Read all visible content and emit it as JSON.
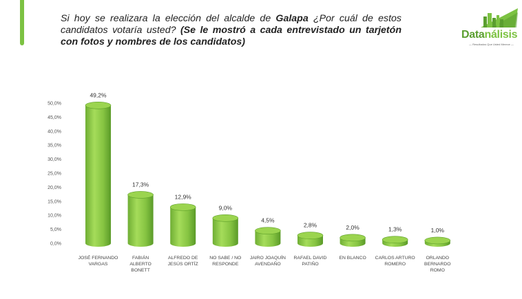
{
  "header": {
    "question_part1": "Si hoy se realizara la elección del alcalde de ",
    "question_city": "Galapa",
    "question_part2": " ¿Por cuál de estos candidatos votaría usted? ",
    "question_note": "(Se le mostró a cada entrevistado un tarjetón con fotos y nombres de los candidatos)"
  },
  "logo": {
    "text_part1": "Data",
    "text_part2": "nálisis",
    "tagline": "— Resultados Que Usted Merece —",
    "icon": "city-skyline-icon"
  },
  "colors": {
    "accent": "#7cc242",
    "bar_light": "#9bd44f",
    "bar_dark": "#5ea02a"
  },
  "chart_data": {
    "type": "bar",
    "categories": [
      [
        "JOSÉ FERNANDO",
        "VARGAS"
      ],
      [
        "FABIÁN",
        "ALBERTO",
        "BONETT"
      ],
      [
        "ALFREDO DE",
        "JESÚS ORTÍZ"
      ],
      [
        "NO SABE / NO",
        "RESPONDE"
      ],
      [
        "JAIRO JOAQUÍN",
        "AVENDAÑO"
      ],
      [
        "RAFAEL DAVID",
        "PATIÑO"
      ],
      [
        "EN BLANCO"
      ],
      [
        "CARLOS ARTURO",
        "ROMERO"
      ],
      [
        "ORLANDO",
        "BERNARDO",
        "ROMO"
      ]
    ],
    "values": [
      49.2,
      17.3,
      12.9,
      9.0,
      4.5,
      2.8,
      2.0,
      1.3,
      1.0
    ],
    "data_labels": [
      "49,2%",
      "17,3%",
      "12,9%",
      "9,0%",
      "4,5%",
      "2,8%",
      "2,0%",
      "1,3%",
      "1,0%"
    ],
    "yticks": [
      0,
      5,
      10,
      15,
      20,
      25,
      30,
      35,
      40,
      45,
      50
    ],
    "ytick_labels": [
      "0,0%",
      "5,0%",
      "10,0%",
      "15,0%",
      "20,0%",
      "25,0%",
      "30,0%",
      "35,0%",
      "40,0%",
      "45,0%",
      "50,0%"
    ],
    "ylim": [
      0,
      50
    ],
    "grid": false,
    "legend": "none",
    "title": "",
    "xlabel": "",
    "ylabel": ""
  }
}
